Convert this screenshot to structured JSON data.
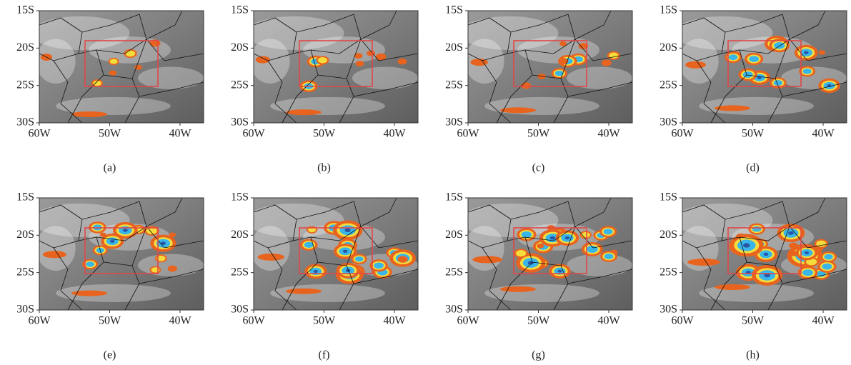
{
  "panels": [
    {
      "caption": "(a)",
      "y_labels": [
        "15S",
        "20S",
        "25S",
        "30S"
      ],
      "x_labels": [
        "60W",
        "50W",
        "40W"
      ]
    },
    {
      "caption": "(b)",
      "y_labels": [
        "15S",
        "20S",
        "25S",
        "30S"
      ],
      "x_labels": [
        "60W",
        "50W",
        "40W"
      ]
    },
    {
      "caption": "(c)",
      "y_labels": [
        "15S",
        "20S",
        "25S",
        "30S"
      ],
      "x_labels": [
        "60W",
        "50W",
        "40W"
      ]
    },
    {
      "caption": "(d)",
      "y_labels": [
        "15S",
        "20S",
        "25S",
        "30S"
      ],
      "x_labels": [
        "60W",
        "50W",
        "40W"
      ]
    },
    {
      "caption": "(e)",
      "y_labels": [
        "15S",
        "20S",
        "25S",
        "30S"
      ],
      "x_labels": [
        "60W",
        "50W",
        "40W"
      ]
    },
    {
      "caption": "(f)",
      "y_labels": [
        "15S",
        "20S",
        "25S",
        "30S"
      ],
      "x_labels": [
        "60W",
        "50W",
        "40W"
      ]
    },
    {
      "caption": "(g)",
      "y_labels": [
        "15S",
        "20S",
        "25S",
        "30S"
      ],
      "x_labels": [
        "60W",
        "50W",
        "40W"
      ]
    },
    {
      "caption": "(h)",
      "y_labels": [
        "15S",
        "20S",
        "25S",
        "30S"
      ],
      "x_labels": [
        "60W",
        "50W",
        "40W"
      ]
    }
  ]
}
